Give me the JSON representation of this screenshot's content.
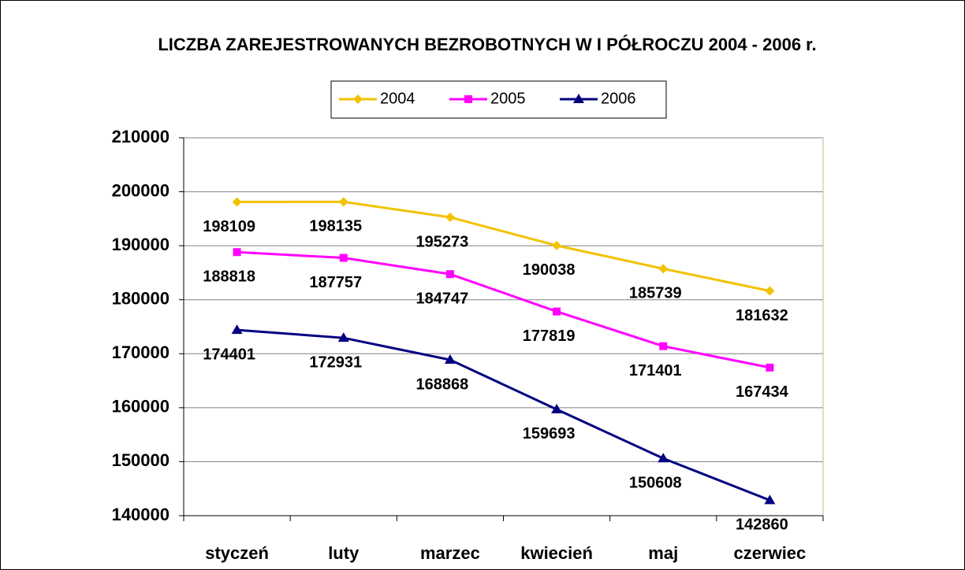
{
  "chart_data": {
    "type": "line",
    "title": "LICZBA ZAREJESTROWANYCH BEZROBOTNYCH W I PÓŁROCZU 2004 - 2006 r.",
    "categories": [
      "styczeń",
      "luty",
      "marzec",
      "kwiecień",
      "maj",
      "czerwiec"
    ],
    "series": [
      {
        "name": "2004",
        "color": "#f2c200",
        "marker": "diamond",
        "values": [
          198109,
          198135,
          195273,
          190038,
          185739,
          181632
        ]
      },
      {
        "name": "2005",
        "color": "#ff00ff",
        "marker": "square",
        "values": [
          188818,
          187757,
          184747,
          177819,
          171401,
          167434
        ]
      },
      {
        "name": "2006",
        "color": "#000080",
        "marker": "triangle",
        "values": [
          174401,
          172931,
          168868,
          159693,
          150608,
          142860
        ]
      }
    ],
    "ylim": [
      140000,
      210000
    ],
    "yticks": [
      140000,
      150000,
      160000,
      170000,
      180000,
      190000,
      200000,
      210000
    ],
    "grid": true,
    "legend": "top"
  }
}
